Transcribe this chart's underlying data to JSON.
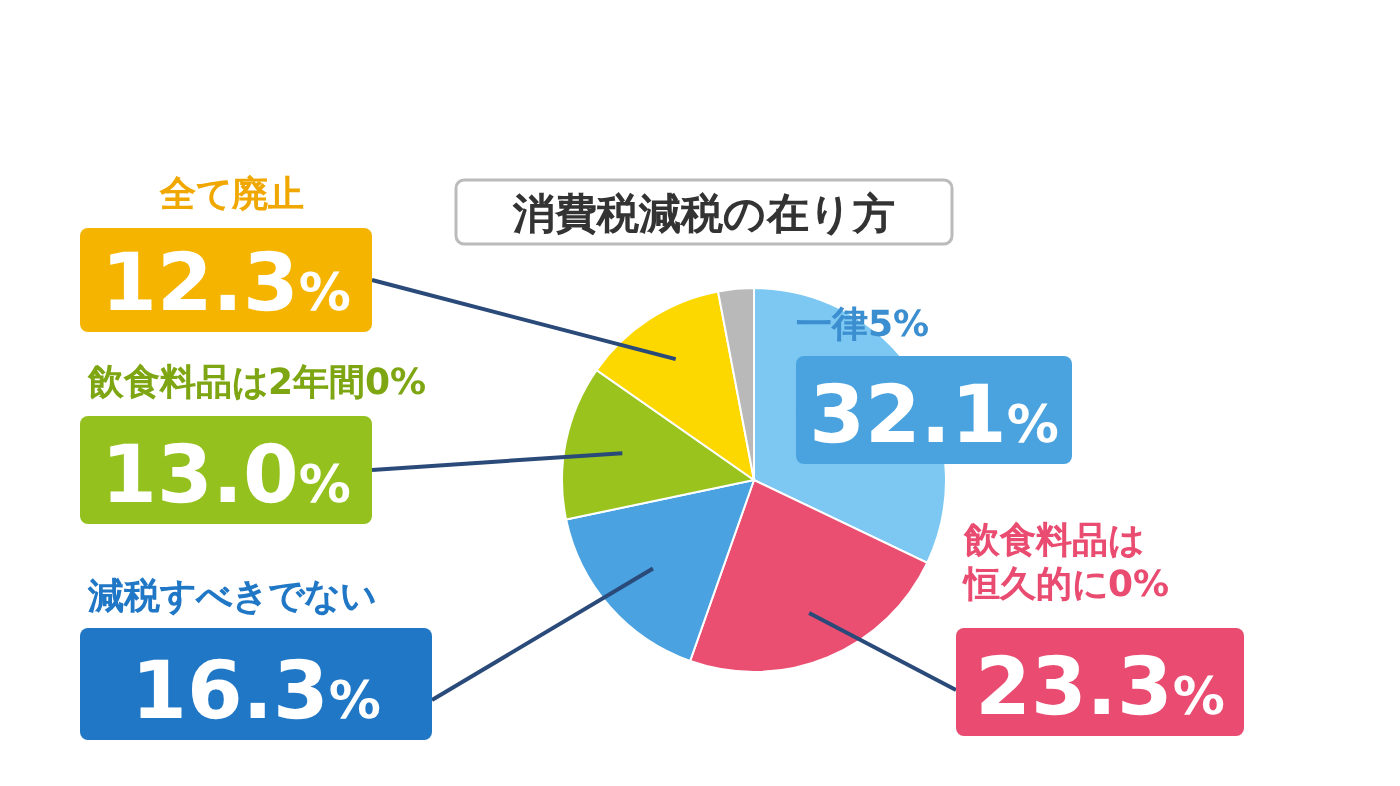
{
  "chart_data": {
    "type": "pie",
    "title": "消費税減税の在り方",
    "categories": [
      "一律5%",
      "飲食料品は恒久的に0%",
      "減税すべきでない",
      "飲食料品は2年間0%",
      "全て廃止",
      null
    ],
    "values": [
      32.1,
      23.3,
      16.3,
      13.0,
      12.3,
      3.0
    ],
    "colors": [
      "#7cc8f2",
      "#ea4f72",
      "#4aa2e0",
      "#9ac31e",
      "#fcd800",
      "#b9b9b9"
    ],
    "value_labels": [
      "32.1%",
      "23.3%",
      "16.3%",
      "13.0%",
      "12.3%",
      null
    ]
  }
}
